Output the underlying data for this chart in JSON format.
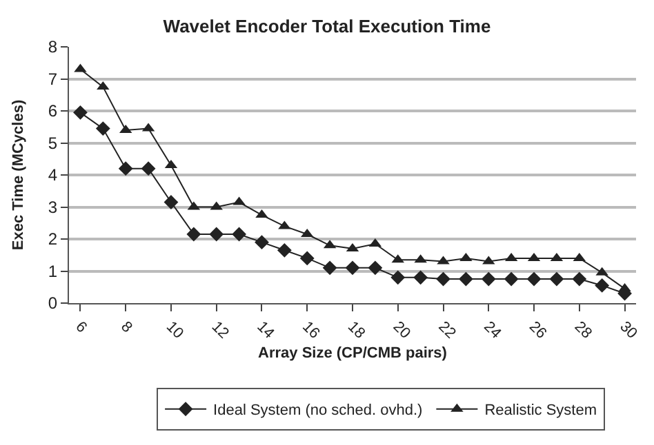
{
  "chart_data": {
    "type": "line",
    "title": "Wavelet Encoder Total Execution Time",
    "xlabel": "Array Size (CP/CMB pairs)",
    "ylabel": "Exec Time (MCycles)",
    "categories": [
      "6",
      null,
      "8",
      null,
      "10",
      null,
      "12",
      null,
      "14",
      null,
      "16",
      null,
      "18",
      null,
      "20",
      null,
      "22",
      null,
      "24",
      null,
      "26",
      null,
      "28",
      null,
      "30"
    ],
    "series": [
      {
        "name": "Ideal System (no sched. ovhd.)",
        "color": "#222222",
        "marker": "diamond",
        "values": [
          5.95,
          5.45,
          4.2,
          4.2,
          3.15,
          2.15,
          2.15,
          2.15,
          1.9,
          1.65,
          1.4,
          1.1,
          1.1,
          1.1,
          0.8,
          0.8,
          0.75,
          0.75,
          0.75,
          0.75,
          0.75,
          0.75,
          0.75,
          0.55,
          0.3
        ]
      },
      {
        "name": "Realistic System",
        "color": "#222222",
        "marker": "triangle",
        "values": [
          7.3,
          6.75,
          5.4,
          5.45,
          4.3,
          3.0,
          3.0,
          3.15,
          2.75,
          2.4,
          2.15,
          1.8,
          1.7,
          1.85,
          1.35,
          1.35,
          1.3,
          1.4,
          1.3,
          1.4,
          1.4,
          1.4,
          1.4,
          0.95,
          0.45
        ]
      }
    ],
    "ylim": [
      0,
      8
    ],
    "yticks": [
      0,
      1,
      2,
      3,
      4,
      5,
      6,
      7,
      8
    ],
    "grid": "y",
    "legend": "bottom",
    "line_style": "solid"
  }
}
